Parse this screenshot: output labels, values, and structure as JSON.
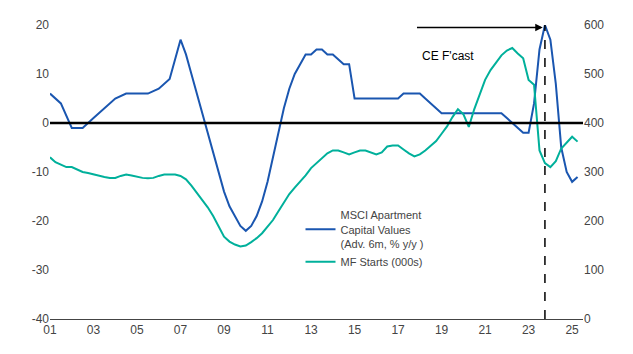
{
  "chart_data": {
    "type": "line",
    "xlim": [
      2001,
      2025.5
    ],
    "xticks": [
      {
        "value": 2001,
        "label": "01"
      },
      {
        "value": 2003,
        "label": "03"
      },
      {
        "value": 2005,
        "label": "05"
      },
      {
        "value": 2007,
        "label": "07"
      },
      {
        "value": 2009,
        "label": "09"
      },
      {
        "value": 2011,
        "label": "11"
      },
      {
        "value": 2013,
        "label": "13"
      },
      {
        "value": 2015,
        "label": "15"
      },
      {
        "value": 2017,
        "label": "17"
      },
      {
        "value": 2019,
        "label": "19"
      },
      {
        "value": 2021,
        "label": "21"
      },
      {
        "value": 2023,
        "label": "23"
      },
      {
        "value": 2025,
        "label": "25"
      }
    ],
    "ylim": [
      -40,
      20
    ],
    "yticks": [
      -40,
      -30,
      -20,
      -10,
      0,
      10,
      20
    ],
    "y2lim": [
      0,
      600
    ],
    "y2ticks": [
      0,
      100,
      200,
      300,
      400,
      500,
      600
    ],
    "grid": false,
    "legend": "lower center",
    "hlines": [
      {
        "y": 0,
        "color": "#000000"
      }
    ],
    "vlines": [
      {
        "x": 2023.75,
        "color": "#000000",
        "line_style": "dashed"
      }
    ],
    "arrows": [
      {
        "x_start": 2017.8,
        "x_end": 2023.65,
        "y": 19.5,
        "color": "#000000"
      }
    ],
    "annotations": [
      {
        "text": "CE F'cast",
        "x": 2018.0,
        "y": 15.5
      }
    ],
    "series": [
      {
        "name": "MSCI Apartment\nCapital Values\n(Adv. 6m, % y/y )",
        "color": "#1a56b0",
        "axis": "y",
        "x": [
          2001.0,
          2001.5,
          2002.0,
          2002.5,
          2003.0,
          2003.5,
          2004.0,
          2004.5,
          2005.0,
          2005.5,
          2006.0,
          2006.5,
          2007.0,
          2007.25,
          2007.5,
          2007.75,
          2008.0,
          2008.25,
          2008.5,
          2008.75,
          2009.0,
          2009.25,
          2009.5,
          2009.75,
          2010.0,
          2010.25,
          2010.5,
          2010.75,
          2011.0,
          2011.25,
          2011.5,
          2011.75,
          2012.0,
          2012.25,
          2012.5,
          2012.75,
          2013.0,
          2013.25,
          2013.5,
          2013.75,
          2014.0,
          2014.25,
          2014.5,
          2014.75,
          2015.0,
          2015.25,
          2015.5,
          2015.75,
          2016.0,
          2016.25,
          2016.5,
          2016.75,
          2017.0,
          2017.25,
          2017.5,
          2017.75,
          2018.0,
          2018.25,
          2018.5,
          2018.75,
          2019.0,
          2019.25,
          2019.5,
          2019.75,
          2020.0,
          2020.25,
          2020.5,
          2020.75,
          2021.0,
          2021.25,
          2021.5,
          2021.75,
          2022.0,
          2022.25,
          2022.5,
          2022.75,
          2023.0,
          2023.25,
          2023.5,
          2023.75,
          2024.0,
          2024.25,
          2024.5,
          2024.75,
          2025.0,
          2025.25
        ],
        "values": [
          6,
          4,
          -1,
          -1,
          1,
          3,
          5,
          6,
          6,
          6,
          7,
          9,
          17,
          14,
          10,
          6,
          2,
          -2,
          -6,
          -10,
          -14,
          -17,
          -19,
          -21,
          -22,
          -21,
          -19,
          -16,
          -12,
          -7,
          -2,
          3,
          7,
          10,
          12,
          14,
          14,
          15,
          15,
          14,
          14,
          13,
          12,
          12,
          5,
          5,
          5,
          5,
          5,
          5,
          5,
          5,
          5,
          6,
          6,
          6,
          6,
          5,
          4,
          3,
          2,
          2,
          2,
          2,
          2,
          2,
          2,
          2,
          2,
          2,
          2,
          2,
          1,
          0,
          -1,
          -2,
          -2,
          4,
          15,
          20,
          17,
          8,
          -5,
          -10,
          -12,
          -11
        ]
      },
      {
        "name": "MF Starts (000s)",
        "color": "#00b09b",
        "axis": "y2",
        "x": [
          2001.0,
          2001.25,
          2001.5,
          2001.75,
          2002.0,
          2002.25,
          2002.5,
          2002.75,
          2003.0,
          2003.25,
          2003.5,
          2003.75,
          2004.0,
          2004.25,
          2004.5,
          2004.75,
          2005.0,
          2005.25,
          2005.5,
          2005.75,
          2006.0,
          2006.25,
          2006.5,
          2006.75,
          2007.0,
          2007.25,
          2007.5,
          2007.75,
          2008.0,
          2008.25,
          2008.5,
          2008.75,
          2009.0,
          2009.25,
          2009.5,
          2009.75,
          2010.0,
          2010.25,
          2010.5,
          2010.75,
          2011.0,
          2011.25,
          2011.5,
          2011.75,
          2012.0,
          2012.25,
          2012.5,
          2012.75,
          2013.0,
          2013.25,
          2013.5,
          2013.75,
          2014.0,
          2014.25,
          2014.5,
          2014.75,
          2015.0,
          2015.25,
          2015.5,
          2015.75,
          2016.0,
          2016.25,
          2016.5,
          2016.75,
          2017.0,
          2017.25,
          2017.5,
          2017.75,
          2018.0,
          2018.25,
          2018.5,
          2018.75,
          2019.0,
          2019.25,
          2019.5,
          2019.75,
          2020.0,
          2020.25,
          2020.5,
          2020.75,
          2021.0,
          2021.25,
          2021.5,
          2021.75,
          2022.0,
          2022.25,
          2022.5,
          2022.75,
          2023.0,
          2023.25,
          2023.5,
          2023.75,
          2024.0,
          2024.25,
          2024.5,
          2024.75,
          2025.0,
          2025.25
        ],
        "values": [
          330,
          320,
          315,
          310,
          310,
          305,
          300,
          298,
          295,
          293,
          290,
          288,
          288,
          292,
          295,
          293,
          290,
          288,
          287,
          288,
          292,
          295,
          295,
          295,
          292,
          285,
          272,
          258,
          243,
          228,
          210,
          190,
          168,
          158,
          152,
          148,
          150,
          157,
          165,
          175,
          188,
          202,
          220,
          238,
          255,
          268,
          280,
          293,
          308,
          318,
          328,
          338,
          344,
          344,
          340,
          336,
          340,
          344,
          344,
          340,
          336,
          340,
          352,
          354,
          354,
          346,
          338,
          332,
          336,
          344,
          353,
          363,
          378,
          393,
          412,
          428,
          418,
          392,
          428,
          456,
          488,
          508,
          522,
          538,
          548,
          553,
          542,
          532,
          488,
          478,
          344,
          318,
          310,
          322,
          348,
          360,
          372,
          362
        ]
      }
    ]
  }
}
